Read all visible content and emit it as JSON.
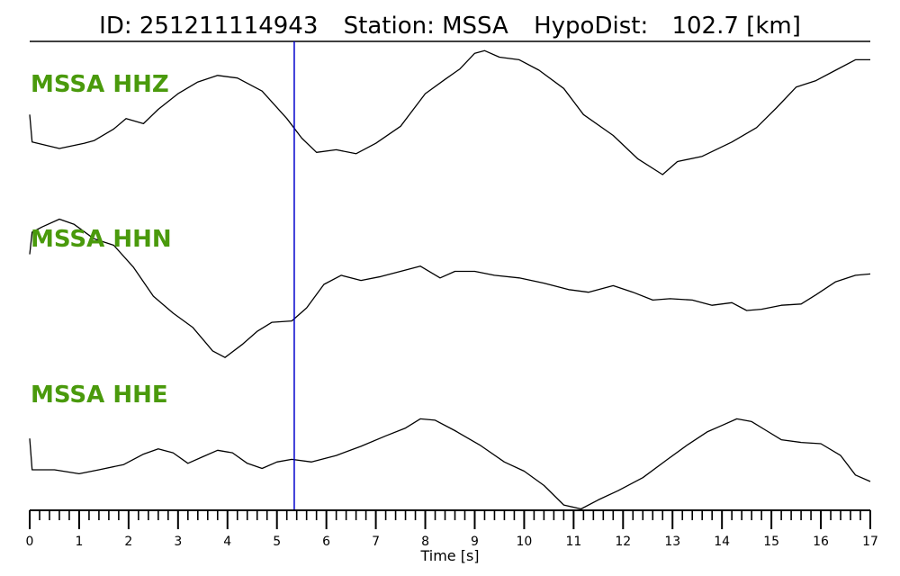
{
  "title": {
    "id_label": "ID:",
    "id_value": "251211114943",
    "station_label": "Station:",
    "station_value": "MSSA",
    "hypodist_label": "HypoDist:",
    "hypodist_value": "102.7",
    "hypodist_unit": "[km]"
  },
  "chart_data": {
    "type": "line",
    "xlabel": "Time [s]",
    "xlim": [
      0,
      17
    ],
    "major_ticks": [
      0,
      1,
      2,
      3,
      4,
      5,
      6,
      7,
      8,
      9,
      10,
      11,
      12,
      13,
      14,
      15,
      16,
      17
    ],
    "minor_tick_step": 0.2,
    "pick_time": 5.35,
    "colors": {
      "trace": "#000000",
      "label": "#4a9a0c",
      "pick_line": "#0000cc",
      "axis": "#000000"
    },
    "series": [
      {
        "name": "MSSA HHZ",
        "x": [
          0,
          0.05,
          0.6,
          1.1,
          1.3,
          1.7,
          1.95,
          2.3,
          2.6,
          3.0,
          3.4,
          3.8,
          4.2,
          4.7,
          5.2,
          5.5,
          5.8,
          6.2,
          6.6,
          7.0,
          7.5,
          8.0,
          8.4,
          8.7,
          9.0,
          9.2,
          9.5,
          9.9,
          10.3,
          10.8,
          11.2,
          11.8,
          12.3,
          12.8,
          13.1,
          13.6,
          14.2,
          14.7,
          15.1,
          15.5,
          15.9,
          16.3,
          16.7,
          17.0
        ],
        "y": [
          2.6,
          0.5,
          0.0,
          0.4,
          0.6,
          1.5,
          2.3,
          1.9,
          3.0,
          4.2,
          5.1,
          5.6,
          5.4,
          4.4,
          2.3,
          0.8,
          -0.3,
          -0.1,
          -0.4,
          0.4,
          1.7,
          4.2,
          5.3,
          6.1,
          7.3,
          7.5,
          7.0,
          6.8,
          6.0,
          4.6,
          2.6,
          1.0,
          -0.8,
          -2.0,
          -1.0,
          -0.6,
          0.5,
          1.6,
          3.1,
          4.7,
          5.2,
          6.0,
          6.8,
          6.8
        ]
      },
      {
        "name": "MSSA HHN",
        "x": [
          0,
          0.05,
          0.25,
          0.6,
          0.9,
          1.3,
          1.7,
          2.1,
          2.5,
          2.9,
          3.3,
          3.7,
          3.95,
          4.3,
          4.6,
          4.9,
          5.3,
          5.6,
          5.95,
          6.3,
          6.7,
          7.1,
          7.5,
          7.9,
          8.3,
          8.6,
          9.0,
          9.4,
          9.9,
          10.4,
          10.9,
          11.3,
          11.8,
          12.2,
          12.6,
          12.95,
          13.4,
          13.8,
          14.2,
          14.5,
          14.8,
          15.2,
          15.6,
          15.9,
          16.3,
          16.7,
          17.0
        ],
        "y": [
          2.3,
          4.0,
          4.4,
          5.0,
          4.6,
          3.5,
          3.0,
          1.3,
          -0.9,
          -2.2,
          -3.3,
          -5.1,
          -5.6,
          -4.6,
          -3.6,
          -2.9,
          -2.8,
          -1.8,
          0.0,
          0.7,
          0.3,
          0.6,
          1.0,
          1.4,
          0.5,
          1.0,
          1.0,
          0.7,
          0.5,
          0.1,
          -0.4,
          -0.6,
          -0.1,
          -0.6,
          -1.2,
          -1.1,
          -1.2,
          -1.6,
          -1.4,
          -2.0,
          -1.9,
          -1.6,
          -1.5,
          -0.8,
          0.2,
          0.7,
          0.8
        ]
      },
      {
        "name": "MSSA HHE",
        "x": [
          0,
          0.05,
          0.5,
          1.0,
          1.4,
          1.9,
          2.3,
          2.6,
          2.9,
          3.2,
          3.5,
          3.8,
          4.1,
          4.4,
          4.7,
          5.0,
          5.3,
          5.7,
          6.2,
          6.7,
          7.2,
          7.6,
          7.9,
          8.2,
          8.6,
          9.1,
          9.6,
          10.0,
          10.4,
          10.8,
          11.15,
          11.5,
          11.9,
          12.4,
          12.9,
          13.3,
          13.7,
          14.0,
          14.3,
          14.6,
          14.9,
          15.2,
          15.6,
          16.0,
          16.4,
          16.7,
          17.0
        ],
        "y": [
          2.4,
          0.0,
          0.0,
          -0.3,
          0.0,
          0.4,
          1.2,
          1.6,
          1.3,
          0.5,
          1.0,
          1.5,
          1.3,
          0.5,
          0.1,
          0.6,
          0.8,
          0.6,
          1.1,
          1.8,
          2.6,
          3.2,
          3.9,
          3.8,
          3.0,
          1.9,
          0.6,
          -0.1,
          -1.2,
          -2.7,
          -3.0,
          -2.3,
          -1.6,
          -0.6,
          0.8,
          1.9,
          2.9,
          3.4,
          3.9,
          3.7,
          3.0,
          2.3,
          2.1,
          2.0,
          1.1,
          -0.4,
          -0.9
        ]
      }
    ]
  }
}
